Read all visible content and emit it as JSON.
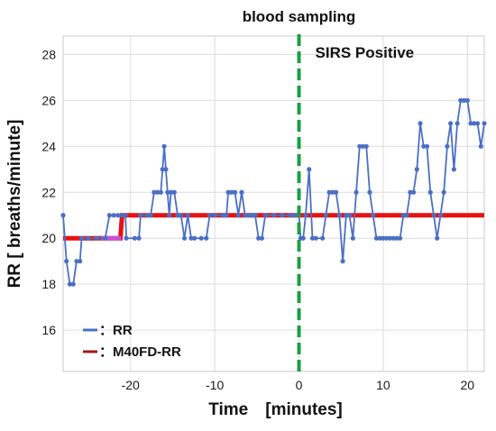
{
  "chart_data": {
    "type": "line",
    "xlabel": "Time　[minutes]",
    "ylabel": "RR [ breaths/minute]",
    "xlim": [
      -28,
      22
    ],
    "ylim": [
      14.2,
      28.8
    ],
    "x_ticks": [
      -20,
      -10,
      0,
      10,
      20
    ],
    "y_ticks": [
      16,
      18,
      20,
      22,
      24,
      26,
      28
    ],
    "grid": true,
    "legend_position": "bottom-left",
    "annotations": {
      "event_line_x": 0,
      "event_line_label": "blood sampling",
      "region_label": "SIRS Positive"
    },
    "colors": {
      "rr": "#4a6fc4",
      "m40fd": "#e81010",
      "event_line": "#1a9e45"
    },
    "series": [
      {
        "name": "RR",
        "legend_label": "：RR",
        "points": [
          [
            -28,
            21
          ],
          [
            -27.6,
            19
          ],
          [
            -27.2,
            18
          ],
          [
            -26.8,
            18
          ],
          [
            -26.4,
            19
          ],
          [
            -26,
            19
          ],
          [
            -25.8,
            20
          ],
          [
            -25,
            20
          ],
          [
            -24,
            20
          ],
          [
            -23,
            20
          ],
          [
            -22.5,
            21
          ],
          [
            -22,
            21
          ],
          [
            -21.5,
            21
          ],
          [
            -21,
            21
          ],
          [
            -20.6,
            21
          ],
          [
            -20.5,
            20
          ],
          [
            -19.5,
            20
          ],
          [
            -19,
            20
          ],
          [
            -18.8,
            21
          ],
          [
            -18,
            21
          ],
          [
            -17.6,
            21
          ],
          [
            -17.2,
            22
          ],
          [
            -16.8,
            22
          ],
          [
            -16.4,
            22
          ],
          [
            -16.2,
            23
          ],
          [
            -16,
            24
          ],
          [
            -15.8,
            23
          ],
          [
            -15.6,
            22
          ],
          [
            -15.4,
            21
          ],
          [
            -15.2,
            22
          ],
          [
            -14.8,
            22
          ],
          [
            -14.4,
            21
          ],
          [
            -14,
            21
          ],
          [
            -13.6,
            20
          ],
          [
            -13.2,
            21
          ],
          [
            -12.8,
            20
          ],
          [
            -12.4,
            20
          ],
          [
            -11.6,
            20
          ],
          [
            -11,
            20
          ],
          [
            -10.6,
            21
          ],
          [
            -10,
            21
          ],
          [
            -9,
            21
          ],
          [
            -8.6,
            21
          ],
          [
            -8.4,
            22
          ],
          [
            -8,
            22
          ],
          [
            -7.6,
            22
          ],
          [
            -7.2,
            21
          ],
          [
            -6.8,
            22
          ],
          [
            -6.4,
            21
          ],
          [
            -6,
            21
          ],
          [
            -5.6,
            21
          ],
          [
            -5.2,
            21
          ],
          [
            -4.8,
            20
          ],
          [
            -4.4,
            20
          ],
          [
            -4,
            21
          ],
          [
            -3,
            21
          ],
          [
            -2,
            21
          ],
          [
            -1,
            21
          ],
          [
            -0.5,
            21
          ],
          [
            0,
            21
          ],
          [
            0.2,
            20
          ],
          [
            0.5,
            20
          ],
          [
            0.8,
            21
          ],
          [
            1.2,
            23
          ],
          [
            1.6,
            20
          ],
          [
            2,
            20
          ],
          [
            2.8,
            20
          ],
          [
            3.2,
            21
          ],
          [
            3.6,
            22
          ],
          [
            4,
            22
          ],
          [
            4.4,
            22
          ],
          [
            4.8,
            21
          ],
          [
            5.2,
            19
          ],
          [
            5.6,
            21
          ],
          [
            6,
            21
          ],
          [
            6.4,
            20
          ],
          [
            6.8,
            22
          ],
          [
            7.2,
            24
          ],
          [
            7.6,
            24
          ],
          [
            8,
            24
          ],
          [
            8.4,
            22
          ],
          [
            8.8,
            21
          ],
          [
            9.2,
            20
          ],
          [
            9.6,
            20
          ],
          [
            10,
            20
          ],
          [
            10.4,
            20
          ],
          [
            10.8,
            20
          ],
          [
            11.2,
            20
          ],
          [
            11.6,
            20
          ],
          [
            12,
            20
          ],
          [
            12.4,
            21
          ],
          [
            12.8,
            21
          ],
          [
            13.2,
            22
          ],
          [
            13.6,
            22
          ],
          [
            14,
            23
          ],
          [
            14.4,
            25
          ],
          [
            14.8,
            24
          ],
          [
            15.2,
            24
          ],
          [
            15.6,
            22
          ],
          [
            16,
            21
          ],
          [
            16.4,
            20
          ],
          [
            16.8,
            21
          ],
          [
            17.2,
            22
          ],
          [
            17.6,
            24
          ],
          [
            18,
            25
          ],
          [
            18.4,
            23
          ],
          [
            18.8,
            25
          ],
          [
            19.2,
            26
          ],
          [
            19.6,
            26
          ],
          [
            20,
            26
          ],
          [
            20.4,
            25
          ],
          [
            20.8,
            25
          ],
          [
            21.2,
            25
          ],
          [
            21.6,
            24
          ],
          [
            22,
            25
          ]
        ]
      },
      {
        "name": "M40FD-RR",
        "legend_label": "：M40FD-RR",
        "points": [
          [
            -28,
            20
          ],
          [
            -21.2,
            20
          ],
          [
            -21,
            21
          ],
          [
            22,
            21
          ]
        ]
      }
    ]
  }
}
